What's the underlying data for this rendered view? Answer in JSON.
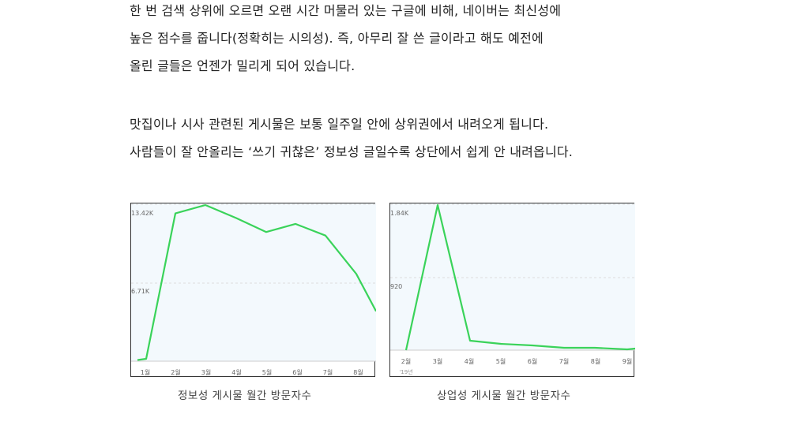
{
  "paragraphs": [
    {
      "lines": [
        "한 번 검색 상위에 오르면 오랜 시간 머물러 있는 구글에 비해, 네이버는 최신성에",
        "높은 점수를 줍니다(정확히는 시의성). 즉, 아무리 잘 쓴 글이라고 해도 예전에",
        "올린 글들은 언젠가 밀리게 되어 있습니다."
      ]
    },
    {
      "lines": [
        "맛집이나 시사 관련된 게시물은 보통 일주일 안에 상위권에서 내려오게 됩니다.",
        "사람들이 잘 안올리는 ‘쓰기 귀찮은’ 정보성 글일수록 상단에서 쉽게 안 내려옵니다."
      ]
    }
  ],
  "colors": {
    "line": "#3ad35a",
    "plot_bg": "#f3f9fd",
    "border": "#333333",
    "grid": "#dddddd"
  },
  "chart_data": [
    {
      "type": "line",
      "title": "정보성 게시물 월간 방문자수",
      "categories": [
        "1월",
        "",
        "2월",
        "3월",
        "4월",
        "5월",
        "6월",
        "7월",
        "8월",
        ""
      ],
      "x_tick_labels": [
        "1월",
        "2월",
        "3월",
        "4월",
        "5월",
        "6월",
        "7월",
        "8월"
      ],
      "y_tick_labels": [
        "6.71K",
        "13.42K"
      ],
      "ylim": [
        0,
        13.42
      ],
      "values_k": [
        0.1,
        0.2,
        12.7,
        13.42,
        12.3,
        11.1,
        11.8,
        10.8,
        7.5,
        4.3
      ],
      "grid": true,
      "legend": "none"
    },
    {
      "type": "line",
      "title": "상업성 게시물 월간 방문자수",
      "categories": [
        "2월",
        "3월",
        "4월",
        "5월",
        "6월",
        "7월",
        "8월",
        "9월",
        ""
      ],
      "x_tick_labels": [
        "2월",
        "3월",
        "4월",
        "5월",
        "6월",
        "7월",
        "8월",
        "9월"
      ],
      "x_sublabel": "'19년",
      "y_tick_labels": [
        "920",
        "1.84K"
      ],
      "ylim": [
        0,
        1840
      ],
      "values": [
        0,
        1840,
        120,
        80,
        60,
        30,
        30,
        10,
        20
      ],
      "grid": true,
      "legend": "none"
    }
  ],
  "captions": [
    "정보성 게시물 월간 방문자수",
    "상업성 게시물 월간 방문자수"
  ]
}
